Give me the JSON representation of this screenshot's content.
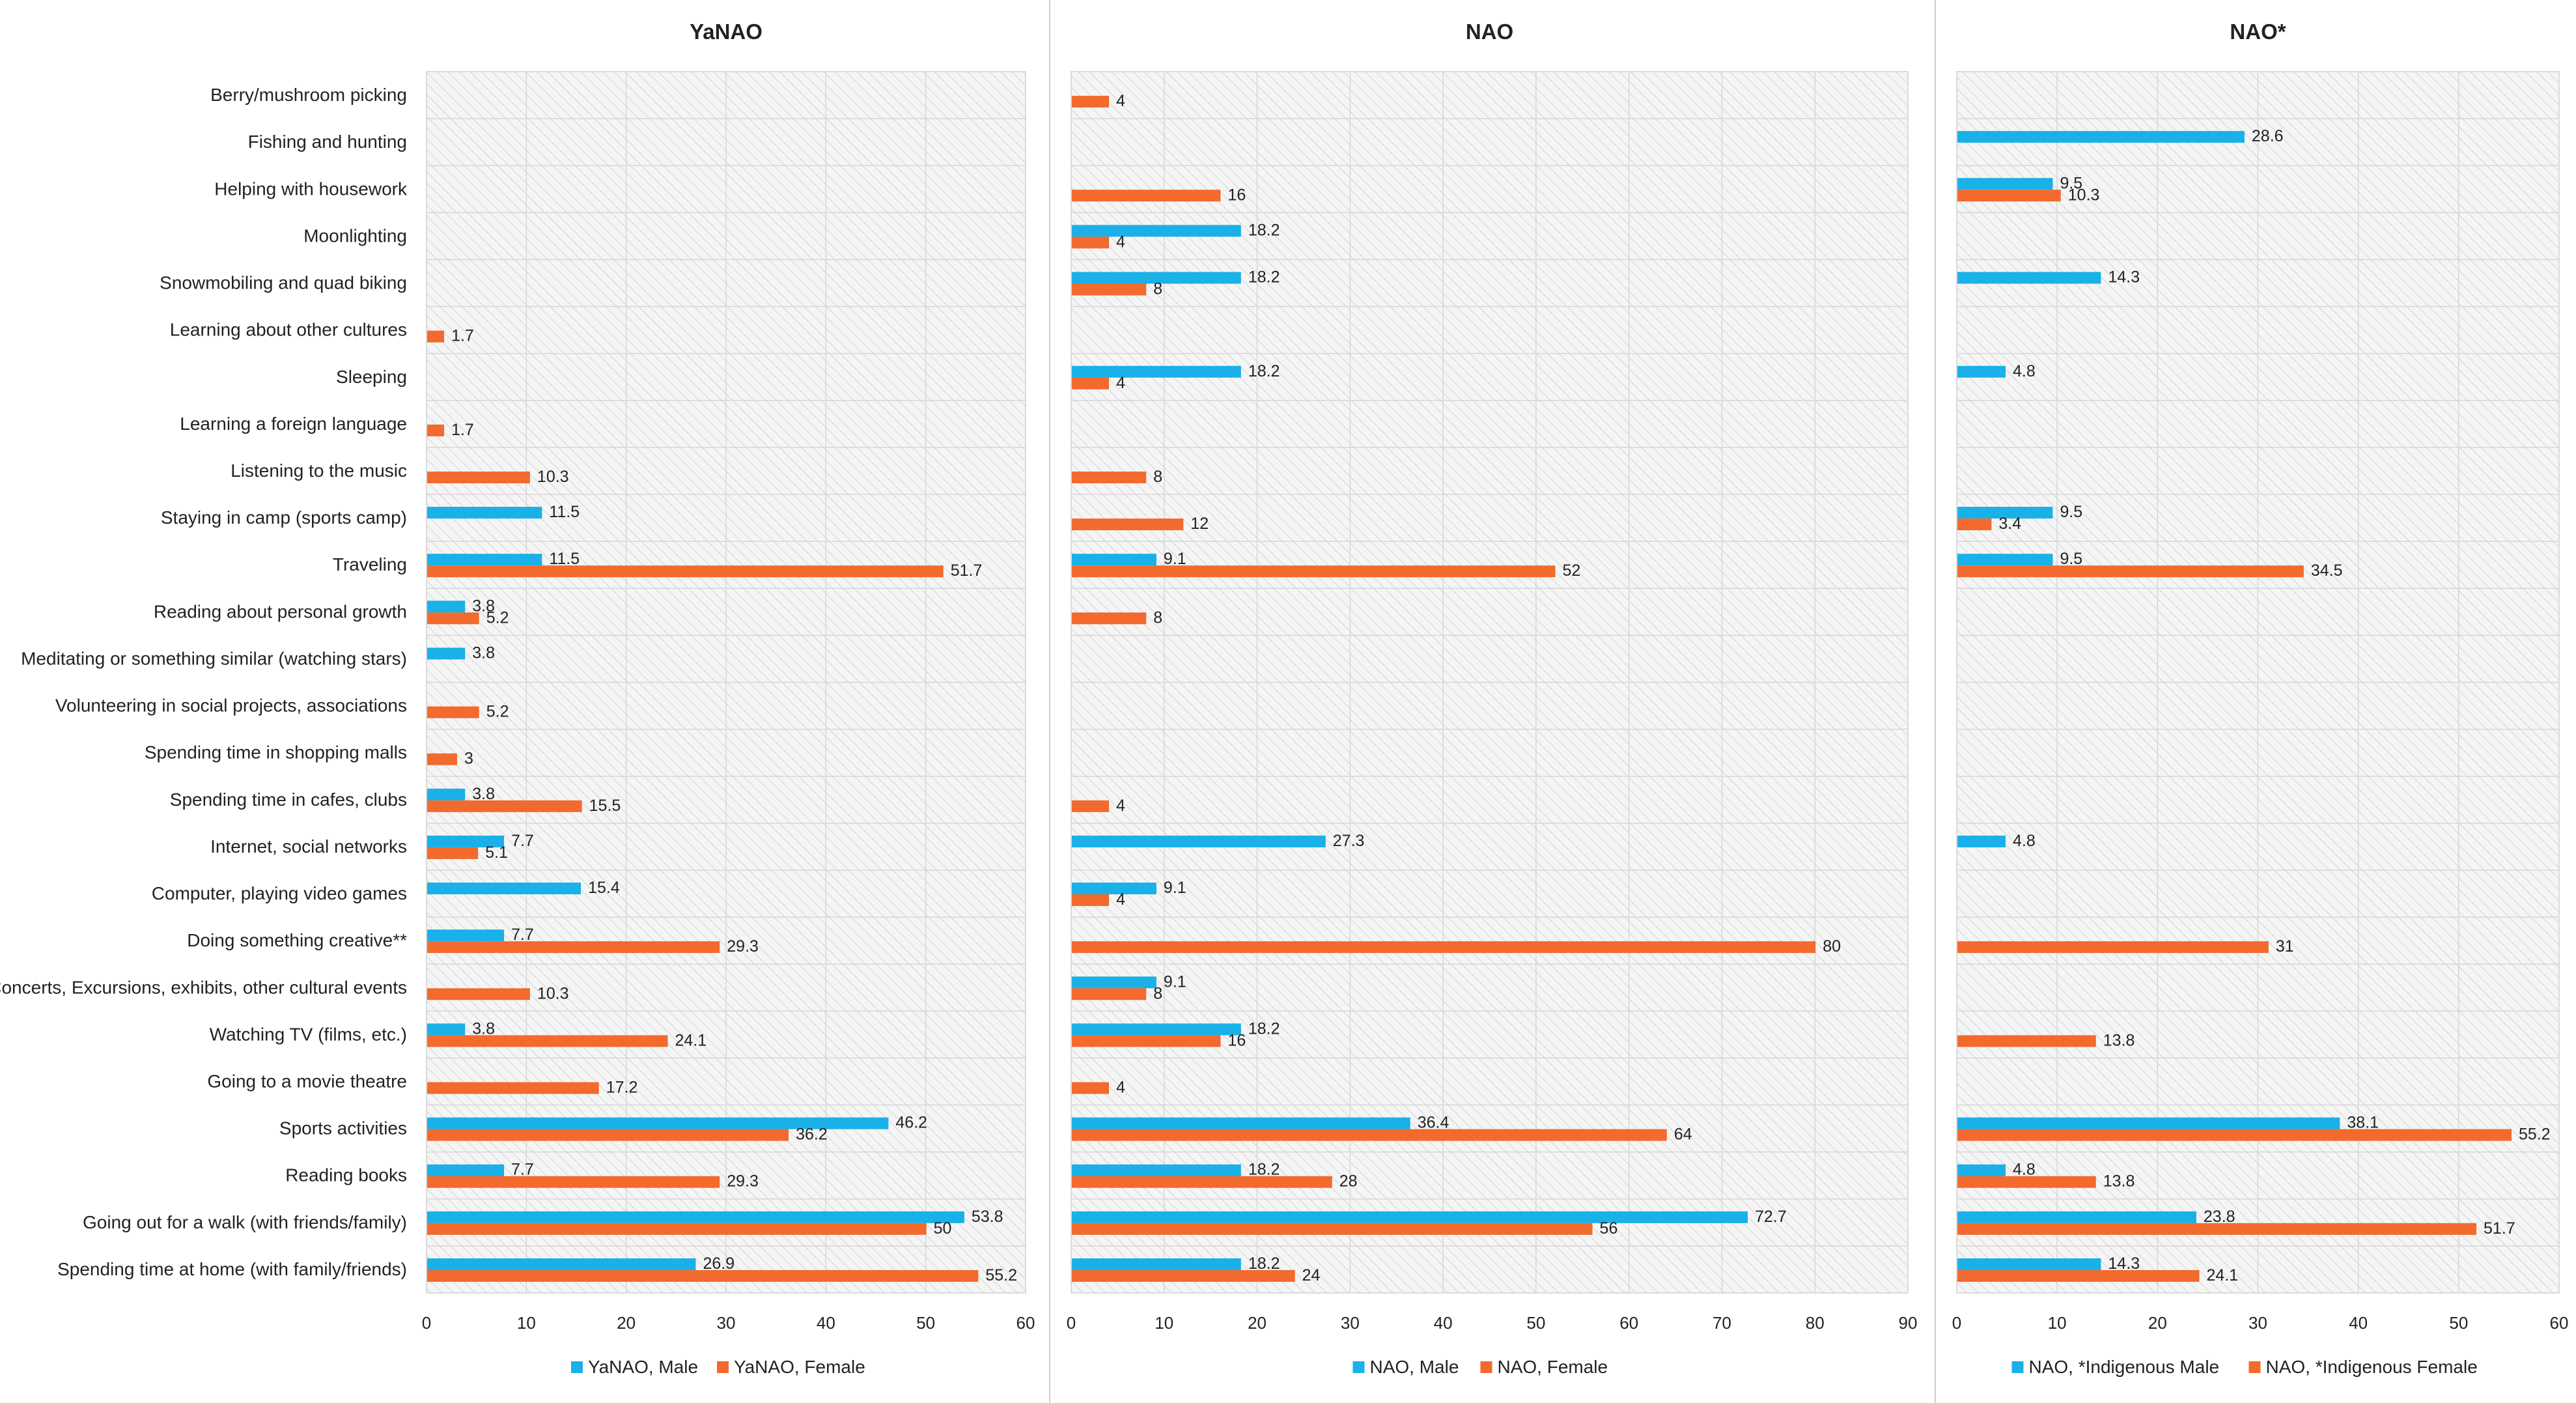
{
  "colors": {
    "male": "#1ab0e8",
    "female": "#f26a2e",
    "plot_bg": "#f5f5f5",
    "hatch": "#dedede",
    "grid": "#d6d6d6",
    "divider": "#cfcfcf",
    "text": "#222222"
  },
  "categories": [
    "Berry/mushroom picking",
    "Fishing and hunting",
    "Helping with housework",
    "Moonlighting",
    "Snowmobiling and quad biking",
    "Learning about other cultures",
    "Sleeping",
    "Learning a foreign language",
    "Listening to the music",
    "Staying in camp (sports camp)",
    "Traveling",
    "Reading about personal growth",
    "Meditating or something similar (watching stars)",
    "Volunteering in social projects, associations",
    "Spending time in shopping malls",
    "Spending time in cafes, clubs",
    "Internet, social networks",
    "Computer, playing video games",
    "Doing something creative**",
    "Concerts, Excursions, exhibits, other cultural events",
    "Watching TV (films, etc.)",
    "Going to a movie theatre",
    "Sports activities",
    "Reading books",
    "Going out for a walk (with friends/family)",
    "Spending time at home (with family/friends)"
  ],
  "chart_data": [
    {
      "type": "bar",
      "orientation": "horizontal",
      "title": "YaNAO",
      "xlim": [
        0,
        60
      ],
      "xticks": [
        0,
        10,
        20,
        30,
        40,
        50,
        60
      ],
      "legend_position": "bottom",
      "series": [
        {
          "name": "YaNAO, Male",
          "color": "#1ab0e8",
          "values": [
            null,
            null,
            null,
            null,
            null,
            null,
            null,
            null,
            null,
            11.5,
            11.5,
            3.8,
            3.8,
            null,
            null,
            3.8,
            7.7,
            15.4,
            7.7,
            null,
            3.8,
            null,
            46.2,
            7.7,
            53.8,
            26.9
          ]
        },
        {
          "name": "YaNAO, Female",
          "color": "#f26a2e",
          "values": [
            null,
            null,
            null,
            null,
            null,
            1.7,
            null,
            1.7,
            10.3,
            null,
            51.7,
            5.2,
            null,
            5.2,
            3,
            15.5,
            5.1,
            null,
            29.3,
            10.3,
            24.1,
            17.2,
            36.2,
            29.3,
            50,
            55.2
          ]
        }
      ]
    },
    {
      "type": "bar",
      "orientation": "horizontal",
      "title": "NAO",
      "xlim": [
        0,
        90
      ],
      "xticks": [
        0,
        10,
        20,
        30,
        40,
        50,
        60,
        70,
        80,
        90
      ],
      "legend_position": "bottom",
      "series": [
        {
          "name": "NAO, Male",
          "color": "#1ab0e8",
          "values": [
            null,
            null,
            null,
            18.2,
            18.2,
            null,
            18.2,
            null,
            null,
            null,
            9.1,
            null,
            null,
            null,
            null,
            null,
            27.3,
            9.1,
            null,
            9.1,
            18.2,
            null,
            36.4,
            18.2,
            72.7,
            18.2
          ]
        },
        {
          "name": "NAO, Female",
          "color": "#f26a2e",
          "values": [
            4,
            null,
            16,
            4,
            8,
            null,
            4,
            null,
            8,
            12,
            52,
            8,
            null,
            null,
            null,
            4,
            null,
            4,
            80,
            8,
            16,
            4,
            64,
            28,
            56,
            24
          ]
        }
      ]
    },
    {
      "type": "bar",
      "orientation": "horizontal",
      "title": "NAO*",
      "xlim": [
        0,
        60
      ],
      "xticks": [
        0,
        10,
        20,
        30,
        40,
        50,
        60
      ],
      "legend_position": "bottom",
      "series": [
        {
          "name": "NAO, *Indigenous Male",
          "color": "#1ab0e8",
          "values": [
            null,
            28.6,
            9.5,
            null,
            14.3,
            null,
            4.8,
            null,
            null,
            9.5,
            9.5,
            null,
            null,
            null,
            null,
            null,
            4.8,
            null,
            null,
            null,
            null,
            null,
            38.1,
            4.8,
            23.8,
            14.3
          ]
        },
        {
          "name": "NAO, *Indigenous Female",
          "color": "#f26a2e",
          "values": [
            null,
            null,
            10.3,
            null,
            null,
            null,
            null,
            null,
            null,
            3.4,
            34.5,
            null,
            null,
            null,
            null,
            null,
            null,
            null,
            31,
            null,
            13.8,
            null,
            55.2,
            13.8,
            51.7,
            24.1
          ]
        }
      ]
    }
  ]
}
